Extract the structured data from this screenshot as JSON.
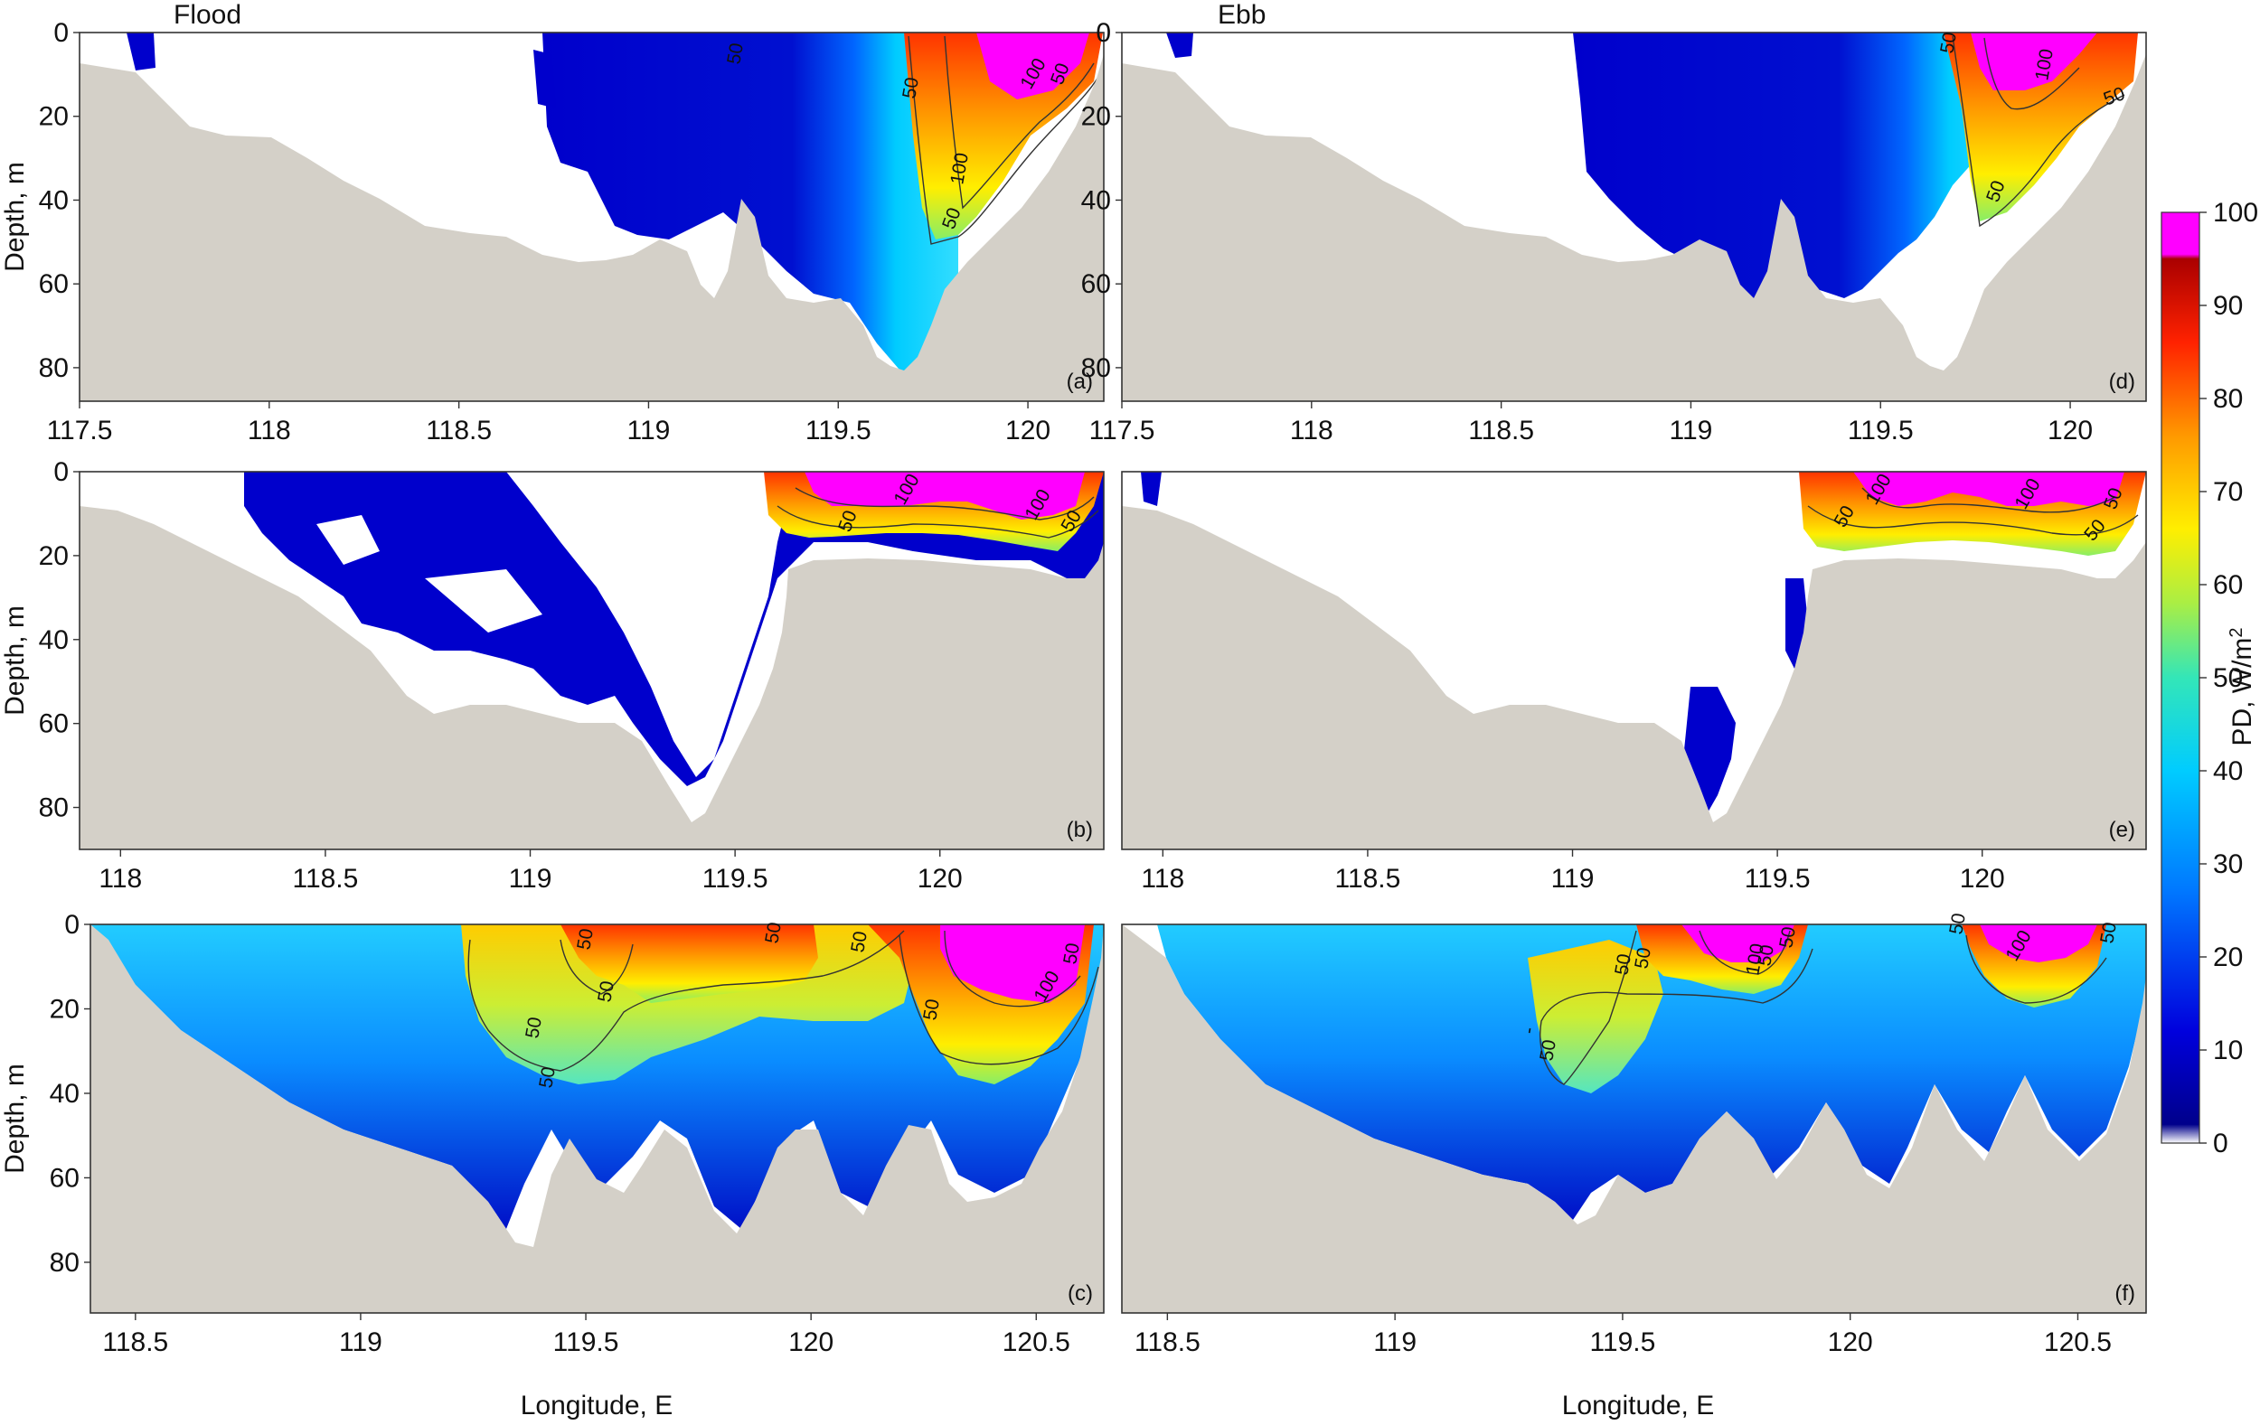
{
  "figure": {
    "titles": {
      "flood": "Flood",
      "ebb": "Ebb"
    },
    "xlabel": "Longitude, E",
    "ylabel": "Depth, m",
    "colorbar": {
      "label": "PD, W/m",
      "label_sup": "2",
      "ticks": [
        "100",
        "90",
        "80",
        "70",
        "60",
        "50",
        "40",
        "30",
        "20",
        "10",
        "0"
      ]
    }
  },
  "chart_data": [
    {
      "type": "heatmap",
      "panel": "(a)",
      "column": "Flood",
      "xlim": [
        117.5,
        120.2
      ],
      "ylim": [
        0,
        88
      ],
      "xticks": [
        "117.5",
        "118",
        "118.5",
        "119",
        "119.5",
        "120"
      ],
      "yticks": [
        "0",
        "20",
        "40",
        "60",
        "80"
      ],
      "contour_labels": [
        "50",
        "50",
        "100",
        "100",
        "50",
        "50"
      ],
      "bathymetry_m": [
        [
          117.5,
          5
        ],
        [
          117.7,
          15
        ],
        [
          117.9,
          22
        ],
        [
          118.1,
          24
        ],
        [
          118.3,
          32
        ],
        [
          118.5,
          45
        ],
        [
          118.7,
          50
        ],
        [
          118.9,
          55
        ],
        [
          119.0,
          58
        ],
        [
          119.15,
          62
        ],
        [
          119.25,
          42
        ],
        [
          119.35,
          60
        ],
        [
          119.5,
          65
        ],
        [
          119.6,
          80
        ],
        [
          119.7,
          70
        ],
        [
          119.8,
          55
        ],
        [
          119.95,
          40
        ],
        [
          120.1,
          25
        ],
        [
          120.2,
          10
        ]
      ],
      "energy_note": "max > 100 W/m2 near 119.8-120.1 E"
    },
    {
      "type": "heatmap",
      "panel": "(b)",
      "column": "Flood",
      "xlim": [
        117.9,
        120.4
      ],
      "ylim": [
        0,
        90
      ],
      "xticks": [
        "118",
        "118.5",
        "119",
        "119.5",
        "120"
      ],
      "yticks": [
        "0",
        "20",
        "40",
        "60",
        "80"
      ],
      "contour_labels": [
        "100",
        "50",
        "100",
        "50"
      ],
      "bathymetry_m": [
        [
          117.9,
          10
        ],
        [
          118.1,
          15
        ],
        [
          118.3,
          25
        ],
        [
          118.5,
          40
        ],
        [
          118.7,
          57
        ],
        [
          118.9,
          62
        ],
        [
          119.1,
          70
        ],
        [
          119.3,
          87
        ],
        [
          119.45,
          60
        ],
        [
          119.55,
          20
        ],
        [
          119.8,
          18
        ],
        [
          120.1,
          20
        ],
        [
          120.3,
          22
        ],
        [
          120.4,
          18
        ]
      ],
      "energy_note": "max > 100 W/m2 near 119.6-120.3 E"
    },
    {
      "type": "heatmap",
      "panel": "(c)",
      "column": "Flood",
      "xlim": [
        118.4,
        120.65
      ],
      "ylim": [
        0,
        92
      ],
      "xticks": [
        "118.5",
        "119",
        "119.5",
        "120",
        "120.5"
      ],
      "yticks": [
        "0",
        "20",
        "40",
        "60",
        "80"
      ],
      "contour_labels": [
        "50",
        "50",
        "50",
        "50",
        "50",
        "50",
        "50",
        "100",
        "50"
      ],
      "bathymetry_m": [
        [
          118.45,
          0
        ],
        [
          118.6,
          20
        ],
        [
          118.8,
          40
        ],
        [
          119.0,
          55
        ],
        [
          119.2,
          65
        ],
        [
          119.4,
          75
        ],
        [
          119.5,
          50
        ],
        [
          119.6,
          45
        ],
        [
          119.75,
          65
        ],
        [
          119.85,
          72
        ],
        [
          119.95,
          55
        ],
        [
          120.1,
          68
        ],
        [
          120.2,
          50
        ],
        [
          120.28,
          62
        ],
        [
          120.35,
          45
        ],
        [
          120.5,
          35
        ],
        [
          120.62,
          0
        ]
      ],
      "energy_note": "max > 100 W/m2 near 120.25-120.55 E"
    },
    {
      "type": "heatmap",
      "panel": "(d)",
      "column": "Ebb",
      "xlim": [
        117.5,
        120.2
      ],
      "ylim": [
        0,
        88
      ],
      "xticks": [
        "117.5",
        "118",
        "118.5",
        "119",
        "119.5",
        "120"
      ],
      "yticks": [
        "0",
        "20",
        "40",
        "60",
        "80"
      ],
      "contour_labels": [
        "50",
        "100",
        "50",
        "50"
      ],
      "bathymetry_m": [
        [
          117.5,
          5
        ],
        [
          117.7,
          15
        ],
        [
          117.9,
          22
        ],
        [
          118.1,
          24
        ],
        [
          118.3,
          32
        ],
        [
          118.5,
          45
        ],
        [
          118.7,
          50
        ],
        [
          118.9,
          55
        ],
        [
          119.0,
          58
        ],
        [
          119.15,
          62
        ],
        [
          119.25,
          42
        ],
        [
          119.35,
          60
        ],
        [
          119.5,
          65
        ],
        [
          119.6,
          80
        ],
        [
          119.7,
          70
        ],
        [
          119.8,
          55
        ],
        [
          119.95,
          40
        ],
        [
          120.1,
          25
        ],
        [
          120.2,
          10
        ]
      ],
      "energy_note": "max > 100 W/m2 near 119.75-120.15 E"
    },
    {
      "type": "heatmap",
      "panel": "(e)",
      "column": "Ebb",
      "xlim": [
        117.9,
        120.4
      ],
      "ylim": [
        0,
        90
      ],
      "xticks": [
        "118",
        "118.5",
        "119",
        "119.5",
        "120"
      ],
      "yticks": [],
      "contour_labels": [
        "50",
        "100",
        "100",
        "50",
        "50"
      ],
      "bathymetry_m": [
        [
          117.9,
          10
        ],
        [
          118.1,
          15
        ],
        [
          118.3,
          25
        ],
        [
          118.5,
          40
        ],
        [
          118.7,
          57
        ],
        [
          118.9,
          62
        ],
        [
          119.1,
          70
        ],
        [
          119.3,
          87
        ],
        [
          119.45,
          60
        ],
        [
          119.55,
          20
        ],
        [
          119.8,
          18
        ],
        [
          120.1,
          20
        ],
        [
          120.3,
          22
        ],
        [
          120.4,
          18
        ]
      ],
      "energy_note": "max > 100 W/m2 near 119.6-120.3 E"
    },
    {
      "type": "heatmap",
      "panel": "(f)",
      "column": "Ebb",
      "xlim": [
        118.4,
        120.65
      ],
      "ylim": [
        0,
        92
      ],
      "xticks": [
        "118.5",
        "119",
        "119.5",
        "120",
        "120.5"
      ],
      "yticks": [],
      "contour_labels": [
        "-",
        "50",
        "50",
        "50",
        "50",
        "100",
        "50",
        "50",
        "100",
        "50"
      ],
      "bathymetry_m": [
        [
          118.45,
          0
        ],
        [
          118.6,
          20
        ],
        [
          118.8,
          40
        ],
        [
          119.0,
          55
        ],
        [
          119.2,
          65
        ],
        [
          119.4,
          75
        ],
        [
          119.5,
          50
        ],
        [
          119.6,
          45
        ],
        [
          119.75,
          65
        ],
        [
          119.85,
          72
        ],
        [
          119.95,
          55
        ],
        [
          120.1,
          68
        ],
        [
          120.2,
          50
        ],
        [
          120.28,
          62
        ],
        [
          120.35,
          45
        ],
        [
          120.5,
          35
        ],
        [
          120.62,
          0
        ]
      ],
      "energy_note": "max > 100 W/m2 near 119.55-119.8 E and 120.25-120.4 E"
    }
  ]
}
